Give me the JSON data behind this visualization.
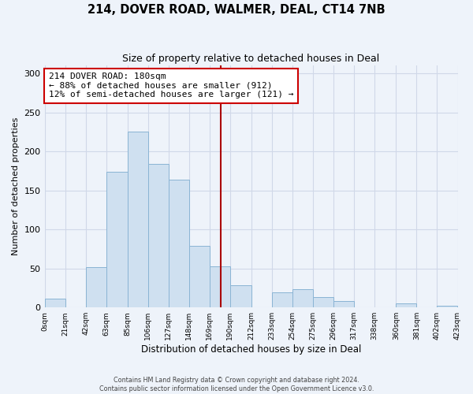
{
  "title": "214, DOVER ROAD, WALMER, DEAL, CT14 7NB",
  "subtitle": "Size of property relative to detached houses in Deal",
  "xlabel": "Distribution of detached houses by size in Deal",
  "ylabel": "Number of detached properties",
  "bar_color": "#cfe0f0",
  "bar_edge_color": "#8ab4d4",
  "bin_edges": [
    0,
    21,
    42,
    63,
    85,
    106,
    127,
    148,
    169,
    190,
    212,
    233,
    254,
    275,
    296,
    317,
    338,
    360,
    381,
    402,
    423
  ],
  "bar_heights": [
    11,
    0,
    52,
    174,
    225,
    184,
    164,
    79,
    53,
    28,
    0,
    19,
    23,
    13,
    8,
    0,
    0,
    5,
    0,
    2
  ],
  "tick_labels": [
    "0sqm",
    "21sqm",
    "42sqm",
    "63sqm",
    "85sqm",
    "106sqm",
    "127sqm",
    "148sqm",
    "169sqm",
    "190sqm",
    "212sqm",
    "233sqm",
    "254sqm",
    "275sqm",
    "296sqm",
    "317sqm",
    "338sqm",
    "360sqm",
    "381sqm",
    "402sqm",
    "423sqm"
  ],
  "ylim": [
    0,
    310
  ],
  "yticks": [
    0,
    50,
    100,
    150,
    200,
    250,
    300
  ],
  "vline_x": 180,
  "vline_color": "#aa0000",
  "annotation_title": "214 DOVER ROAD: 180sqm",
  "annotation_line1": "← 88% of detached houses are smaller (912)",
  "annotation_line2": "12% of semi-detached houses are larger (121) →",
  "annotation_box_color": "#ffffff",
  "annotation_box_edge": "#cc0000",
  "footer_line1": "Contains HM Land Registry data © Crown copyright and database right 2024.",
  "footer_line2": "Contains public sector information licensed under the Open Government Licence v3.0.",
  "bg_color": "#eef3fa",
  "grid_color": "#d0d8e8"
}
